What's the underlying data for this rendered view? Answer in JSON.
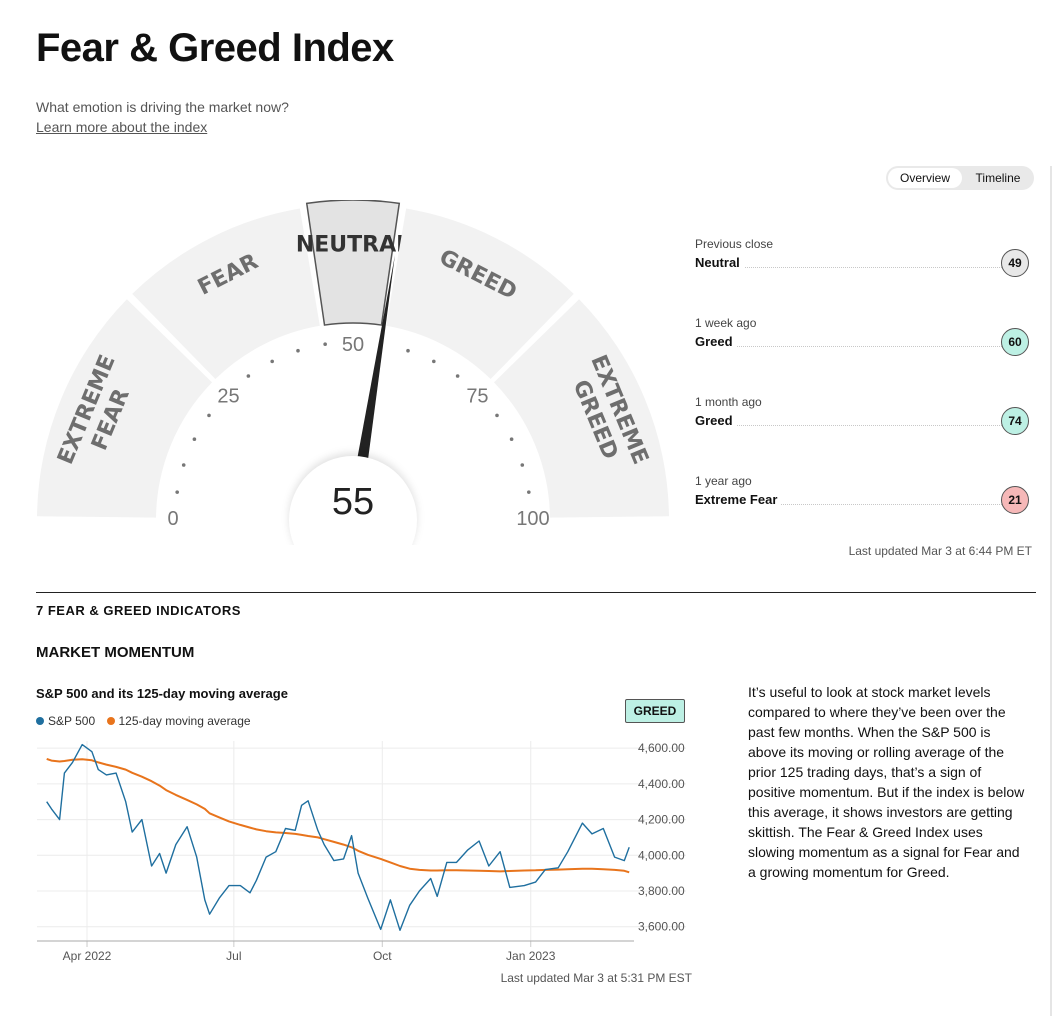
{
  "header": {
    "title": "Fear & Greed Index",
    "subtitle": "What emotion is driving the market now?",
    "learn_more": "Learn more about the index"
  },
  "tabs": [
    "Overview",
    "Timeline"
  ],
  "gauge": {
    "value": 55,
    "value_label": "55",
    "segments": [
      {
        "label": "EXTREME FEAR",
        "from": 0,
        "to": 25
      },
      {
        "label": "FEAR",
        "from": 25,
        "to": 45
      },
      {
        "label": "NEUTRAL",
        "from": 45,
        "to": 55
      },
      {
        "label": "GREED",
        "from": 55,
        "to": 75
      },
      {
        "label": "EXTREME GREED",
        "from": 75,
        "to": 100
      }
    ],
    "active_segment": "NEUTRAL",
    "scale_labels": [
      "0",
      "25",
      "50",
      "75",
      "100"
    ]
  },
  "history": [
    {
      "when": "Previous close",
      "label": "Neutral",
      "value": "49",
      "color": "#e8e8e8"
    },
    {
      "when": "1 week ago",
      "label": "Greed",
      "value": "60",
      "color": "#bdf0e4"
    },
    {
      "when": "1 month ago",
      "label": "Greed",
      "value": "74",
      "color": "#bdf0e4"
    },
    {
      "when": "1 year ago",
      "label": "Extreme Fear",
      "value": "21",
      "color": "#f6b8b8"
    }
  ],
  "gauge_updated": "Last updated Mar 3 at 6:44 PM ET",
  "indicators_heading": "7 FEAR & GREED INDICATORS",
  "momentum": {
    "heading": "MARKET MOMENTUM",
    "chart_title": "S&P 500 and its 125-day moving average",
    "badge": "GREED",
    "updated": "Last updated Mar 3 at 5:31 PM EST",
    "description": "It’s useful to look at stock market levels compared to where they’ve been over the past few months. When the S&P 500 is above its moving or rolling average of the prior 125 trading days, that’s a sign of positive momentum. But if the index is below this average, it shows investors are getting skittish. The Fear & Greed Index uses slowing momentum as a signal for Fear and a growing momentum for Greed."
  },
  "chart_data": {
    "type": "line",
    "x": [
      "2022-03-07",
      "2022-03-10",
      "2022-03-15",
      "2022-03-18",
      "2022-03-23",
      "2022-03-29",
      "2022-04-04",
      "2022-04-08",
      "2022-04-13",
      "2022-04-19",
      "2022-04-25",
      "2022-04-29",
      "2022-05-05",
      "2022-05-11",
      "2022-05-16",
      "2022-05-20",
      "2022-05-26",
      "2022-06-02",
      "2022-06-08",
      "2022-06-13",
      "2022-06-16",
      "2022-06-22",
      "2022-06-28",
      "2022-07-05",
      "2022-07-11",
      "2022-07-15",
      "2022-07-21",
      "2022-07-27",
      "2022-08-02",
      "2022-08-08",
      "2022-08-12",
      "2022-08-16",
      "2022-08-22",
      "2022-08-26",
      "2022-09-01",
      "2022-09-07",
      "2022-09-12",
      "2022-09-16",
      "2022-09-22",
      "2022-09-30",
      "2022-10-06",
      "2022-10-12",
      "2022-10-18",
      "2022-10-24",
      "2022-10-31",
      "2022-11-04",
      "2022-11-10",
      "2022-11-16",
      "2022-11-23",
      "2022-11-30",
      "2022-12-06",
      "2022-12-13",
      "2022-12-19",
      "2022-12-28",
      "2023-01-04",
      "2023-01-10",
      "2023-01-18",
      "2023-01-24",
      "2023-02-02",
      "2023-02-08",
      "2023-02-15",
      "2023-02-22",
      "2023-02-28",
      "2023-03-03"
    ],
    "series": [
      {
        "name": "S&P 500",
        "color": "#1f6f9f",
        "values": [
          4300,
          4260,
          4200,
          4460,
          4520,
          4620,
          4580,
          4480,
          4450,
          4460,
          4300,
          4130,
          4200,
          3940,
          4010,
          3900,
          4060,
          4160,
          3990,
          3750,
          3670,
          3760,
          3830,
          3830,
          3790,
          3860,
          3990,
          4020,
          4150,
          4140,
          4280,
          4305,
          4140,
          4060,
          3970,
          3980,
          4110,
          3900,
          3760,
          3585,
          3750,
          3580,
          3720,
          3800,
          3870,
          3770,
          3960,
          3960,
          4030,
          4080,
          3940,
          4020,
          3820,
          3830,
          3850,
          3920,
          3930,
          4020,
          4180,
          4120,
          4150,
          3990,
          3970,
          4045
        ]
      },
      {
        "name": "125-day moving average",
        "color": "#e8741c",
        "values": [
          4540,
          4530,
          4525,
          4528,
          4535,
          4538,
          4532,
          4520,
          4508,
          4495,
          4480,
          4462,
          4440,
          4415,
          4390,
          4365,
          4338,
          4310,
          4285,
          4260,
          4235,
          4212,
          4190,
          4170,
          4155,
          4145,
          4135,
          4128,
          4125,
          4120,
          4114,
          4108,
          4100,
          4090,
          4075,
          4060,
          4045,
          4025,
          4003,
          3980,
          3960,
          3940,
          3925,
          3918,
          3915,
          3915,
          3916,
          3916,
          3915,
          3913,
          3912,
          3910,
          3912,
          3915,
          3916,
          3918,
          3920,
          3922,
          3925,
          3925,
          3922,
          3918,
          3913,
          3905
        ]
      }
    ],
    "ylim": [
      3520,
      4640
    ],
    "yticks": [
      "4,600.00",
      "4,400.00",
      "4,200.00",
      "4,000.00",
      "3,800.00",
      "3,600.00"
    ],
    "ytick_values": [
      4600,
      4400,
      4200,
      4000,
      3800,
      3600
    ],
    "xticks": [
      "Apr 2022",
      "Jul",
      "Oct",
      "Jan 2023"
    ],
    "xtick_dates": [
      "2022-04-01",
      "2022-07-01",
      "2022-10-01",
      "2023-01-01"
    ],
    "legend": "top-left",
    "grid": true
  }
}
